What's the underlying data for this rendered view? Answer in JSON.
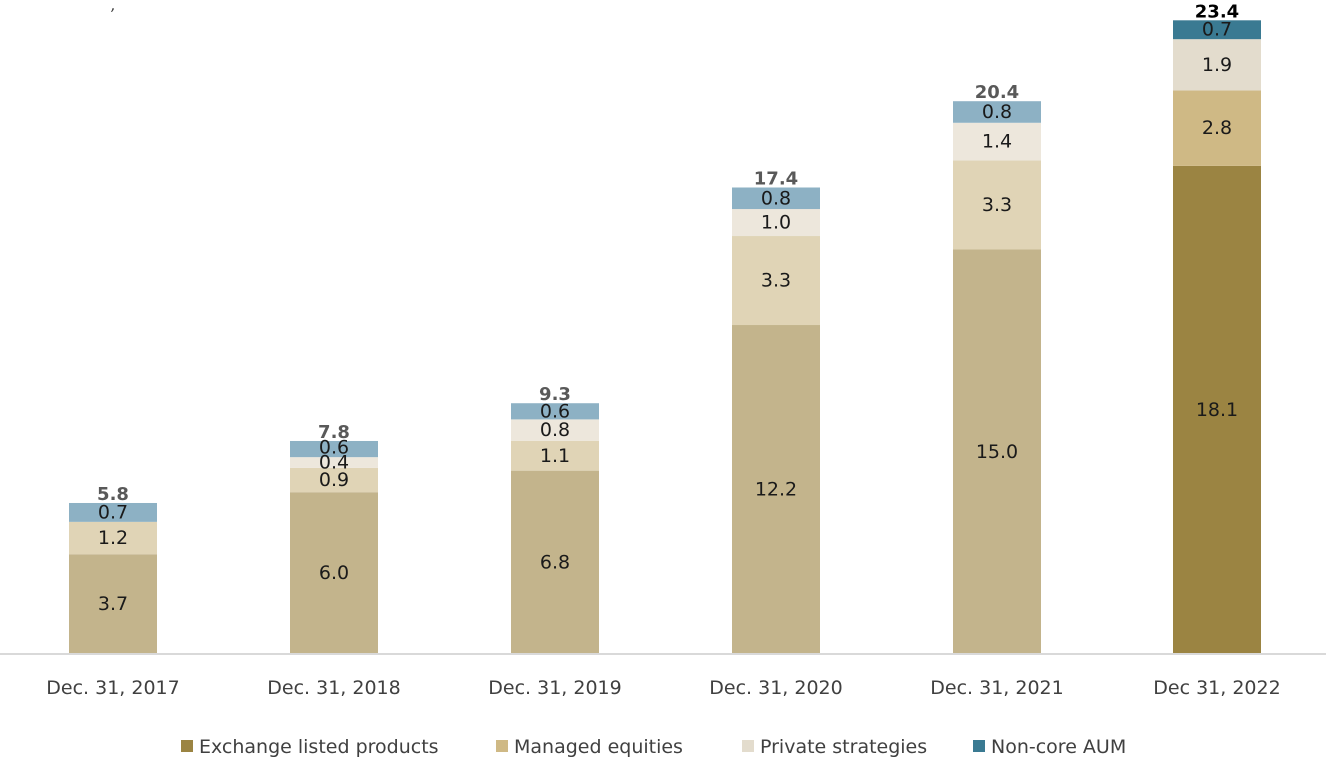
{
  "chart_data": {
    "type": "bar",
    "stacked": true,
    "categories": [
      "Dec. 31, 2017",
      "Dec. 31, 2018",
      "Dec. 31, 2019",
      "Dec. 31, 2020",
      "Dec. 31, 2021",
      "Dec 31, 2022"
    ],
    "series": [
      {
        "name": "Exchange listed products",
        "values": [
          3.7,
          6.0,
          6.8,
          12.2,
          15.0,
          18.1
        ],
        "colors": [
          "#c3b48c",
          "#c3b48c",
          "#c3b48c",
          "#c3b48c",
          "#c3b48c",
          "#9b8442"
        ]
      },
      {
        "name": "Managed equities",
        "values": [
          1.2,
          0.9,
          1.1,
          3.3,
          3.3,
          2.8
        ],
        "colors": [
          "#e0d4b6",
          "#e0d4b6",
          "#e0d4b6",
          "#e0d4b6",
          "#e0d4b6",
          "#cfb985"
        ]
      },
      {
        "name": "Private strategies",
        "values": [
          null,
          0.4,
          0.8,
          1.0,
          1.4,
          1.9
        ],
        "colors": [
          "#ede7dc",
          "#ede7dc",
          "#ede7dc",
          "#ede7dc",
          "#ede7dc",
          "#e3dccd"
        ]
      },
      {
        "name": "Non-core AUM",
        "values": [
          0.7,
          0.6,
          0.6,
          0.8,
          0.8,
          0.7
        ],
        "colors": [
          "#8db1c4",
          "#8db1c4",
          "#8db1c4",
          "#8db1c4",
          "#8db1c4",
          "#3a7a92"
        ]
      }
    ],
    "totals": [
      5.8,
      7.8,
      9.3,
      17.4,
      20.4,
      23.4
    ],
    "total_colors": [
      "#595959",
      "#595959",
      "#595959",
      "#595959",
      "#595959",
      "#000000"
    ],
    "legend_colors": [
      "#9b8442",
      "#cfb985",
      "#e3dccd",
      "#3a7a92"
    ],
    "ylim": [
      0,
      23.4
    ],
    "legend_position": "bottom",
    "grid": false,
    "corner_text": ", "
  }
}
